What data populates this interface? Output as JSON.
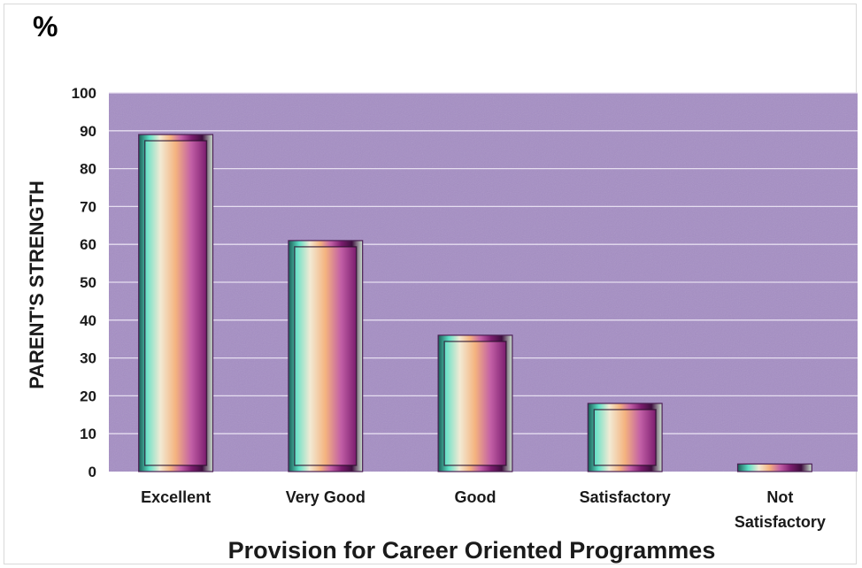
{
  "chart_data": {
    "type": "bar",
    "categories": [
      "Excellent",
      "Very Good",
      "Good",
      "Satisfactory",
      "Not Satisfactory"
    ],
    "category_lines": [
      [
        "Excellent"
      ],
      [
        "Very Good"
      ],
      [
        "Good"
      ],
      [
        "Satisfactory"
      ],
      [
        "Not",
        "Satisfactory"
      ]
    ],
    "values": [
      89,
      61,
      36,
      18,
      2
    ],
    "unit_label": "%",
    "xlabel": "Provision for Career Oriented Programmes",
    "ylabel": "PARENT'S STRENGTH",
    "ylim": [
      0,
      100
    ],
    "yticks": [
      "0",
      "10",
      "20",
      "30",
      "40",
      "50",
      "60",
      "70",
      "80",
      "90",
      "100"
    ],
    "grid": true,
    "legend": "none",
    "colors": {
      "plot_background": "#a58ec4",
      "gridline": "#e6def0",
      "bar_edge": "#4a1f52",
      "bar_stops": [
        "#1a5c55",
        "#5de0c6",
        "#f2ead4",
        "#f4b37f",
        "#c25fa6",
        "#7b1d6e",
        "#3e0e3e",
        "#cfe5d3"
      ]
    }
  }
}
